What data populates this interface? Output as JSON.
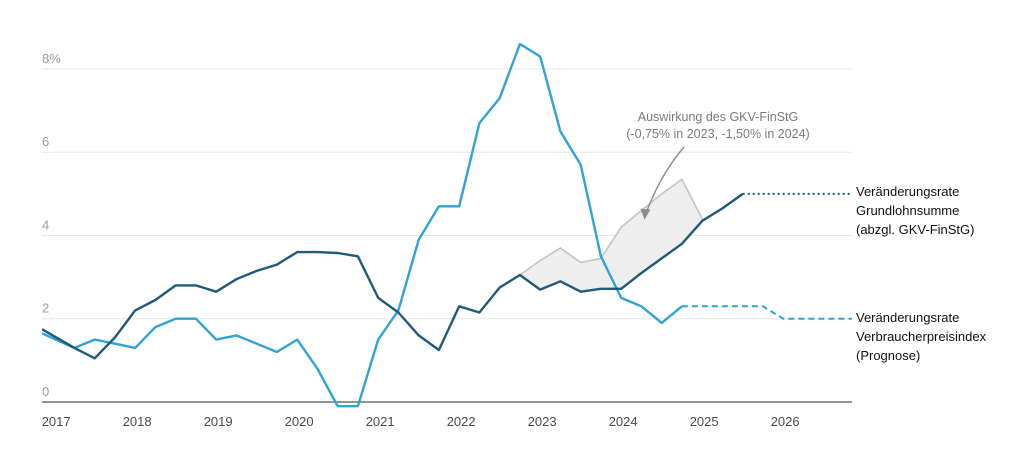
{
  "chart_data": {
    "type": "line",
    "xlim": [
      2016.85,
      2026.85
    ],
    "ylim": [
      0,
      8.6
    ],
    "y_ticks": [
      {
        "value": 0,
        "label": "0"
      },
      {
        "value": 2,
        "label": "2"
      },
      {
        "value": 4,
        "label": "4"
      },
      {
        "value": 6,
        "label": "6"
      },
      {
        "value": 8,
        "label": "8%"
      }
    ],
    "x_ticks": [
      {
        "value": 2017,
        "label": "2017"
      },
      {
        "value": 2018,
        "label": "2018"
      },
      {
        "value": 2019,
        "label": "2019"
      },
      {
        "value": 2020,
        "label": "2020"
      },
      {
        "value": 2021,
        "label": "2021"
      },
      {
        "value": 2022,
        "label": "2022"
      },
      {
        "value": 2023,
        "label": "2023"
      },
      {
        "value": 2024,
        "label": "2024"
      },
      {
        "value": 2025,
        "label": "2025"
      },
      {
        "value": 2026,
        "label": "2026"
      }
    ],
    "grid": "horizontal",
    "series": [
      {
        "key": "grundlohn",
        "name_lines": [
          "Veränderungsrate",
          "Grundlohnsumme",
          "(abzgl. GKV-FinStG)"
        ],
        "color": "#1f5a78",
        "x": [
          2016.0,
          2017.25,
          2017.5,
          2017.75,
          2018.0,
          2018.25,
          2018.5,
          2018.75,
          2019.0,
          2019.25,
          2019.5,
          2019.75,
          2020.0,
          2020.25,
          2020.5,
          2020.75,
          2021.0,
          2021.25,
          2021.5,
          2021.75,
          2022.0,
          2022.25,
          2022.5,
          2022.75,
          2023.0,
          2023.25,
          2023.5,
          2023.75,
          2024.0,
          2024.25,
          2024.5,
          2024.75,
          2025.0,
          2025.25,
          2025.5
        ],
        "y": [
          1.75,
          1.3,
          1.05,
          1.55,
          2.2,
          2.45,
          2.8,
          2.8,
          2.65,
          2.95,
          3.15,
          3.3,
          3.6,
          3.6,
          3.58,
          3.5,
          2.5,
          2.15,
          1.6,
          1.25,
          2.3,
          2.15,
          2.75,
          3.05,
          2.7,
          2.9,
          2.65,
          2.72,
          2.72,
          3.1,
          3.45,
          3.8,
          4.35,
          4.65,
          5.0
        ],
        "dotted_x": [
          2025.5,
          2026.85
        ],
        "dotted_y": [
          5.0,
          5.0
        ]
      },
      {
        "key": "vpi",
        "name_lines": [
          "Veränderungsrate",
          "Verbraucherpreisindex",
          "(Prognose)"
        ],
        "color": "#2fa3d6",
        "x": [
          2016.0,
          2017.25,
          2017.5,
          2017.75,
          2018.0,
          2018.25,
          2018.5,
          2018.75,
          2019.0,
          2019.25,
          2019.5,
          2019.75,
          2020.0,
          2020.25,
          2020.5,
          2020.75,
          2021.0,
          2021.25,
          2021.5,
          2021.75,
          2022.0,
          2022.25,
          2022.5,
          2022.75,
          2023.0,
          2023.25,
          2023.5,
          2023.75,
          2024.0,
          2024.25,
          2024.5,
          2024.75
        ],
        "y": [
          1.65,
          1.3,
          1.5,
          1.4,
          1.3,
          1.8,
          2.0,
          2.0,
          1.5,
          1.6,
          1.4,
          1.2,
          1.5,
          0.8,
          -0.1,
          -0.1,
          1.5,
          2.2,
          3.9,
          4.7,
          4.7,
          6.7,
          7.3,
          8.6,
          8.3,
          6.5,
          5.7,
          3.5,
          2.5,
          2.3,
          1.9,
          2.3
        ],
        "dashed_x": [
          2024.75,
          2025.75,
          2026.0,
          2026.85
        ],
        "dashed_y": [
          2.3,
          2.3,
          2.0,
          2.0
        ]
      }
    ],
    "shaded_area": {
      "color": "#eeeeee",
      "stroke": "#c4c4c4",
      "upper_x": [
        2022.75,
        2023.0,
        2023.25,
        2023.5,
        2023.75,
        2024.0,
        2024.25,
        2024.5,
        2024.75,
        2025.0
      ],
      "upper_y": [
        3.05,
        3.4,
        3.7,
        3.35,
        3.45,
        4.2,
        4.6,
        5.0,
        5.35,
        4.4
      ],
      "lower_x": [
        2025.0,
        2024.75,
        2024.5,
        2024.25,
        2024.0,
        2023.75,
        2023.5,
        2023.25,
        2023.0,
        2022.75
      ],
      "lower_y": [
        4.35,
        3.8,
        3.45,
        3.1,
        2.72,
        2.72,
        2.65,
        2.9,
        2.7,
        3.05
      ]
    },
    "annotation": {
      "lines": [
        "Auswirkung des GKV-FinStG",
        "(-0,75% in 2023, -1,50% in 2024)"
      ],
      "arrow_target": {
        "x": 2024.3,
        "y": 4.5
      }
    }
  }
}
